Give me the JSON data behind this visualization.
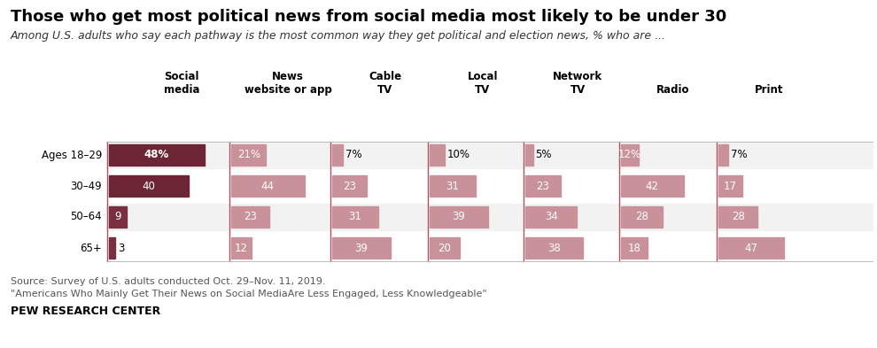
{
  "title": "Those who get most political news from social media most likely to be under 30",
  "subtitle": "Among U.S. adults who say each pathway is the most common way they get political and election news, % who are ...",
  "source_line1": "Source: Survey of U.S. adults conducted Oct. 29–Nov. 11, 2019.",
  "source_line2": "\"Americans Who Mainly Get Their News on Social MediaAre Less Engaged, Less Knowledgeable\"",
  "footer": "PEW RESEARCH CENTER",
  "columns": [
    "Social\nmedia",
    "News\nwebsite or app",
    "Cable\nTV",
    "Local\nTV",
    "Network\nTV",
    "Radio",
    "Print"
  ],
  "rows": [
    "Ages 18–29",
    "30–49",
    "50–64",
    "65+"
  ],
  "data": [
    [
      48,
      21,
      7,
      10,
      5,
      12,
      7
    ],
    [
      40,
      44,
      23,
      31,
      23,
      42,
      17
    ],
    [
      9,
      23,
      31,
      39,
      34,
      28,
      28
    ],
    [
      3,
      12,
      39,
      20,
      38,
      18,
      47
    ]
  ],
  "social_colors": [
    "#6b2535",
    "#6b2535",
    "#7a2f40",
    "#7a2f40"
  ],
  "other_color": "#c9919a",
  "row_bg_colors": [
    "#f2f2f2",
    "#ffffff",
    "#f2f2f2",
    "#ffffff"
  ],
  "divider_color": "#b05060",
  "title_fontsize": 13,
  "subtitle_fontsize": 9,
  "header_fontsize": 8.5,
  "label_fontsize": 8.5,
  "source_fontsize": 8,
  "footer_fontsize": 9
}
